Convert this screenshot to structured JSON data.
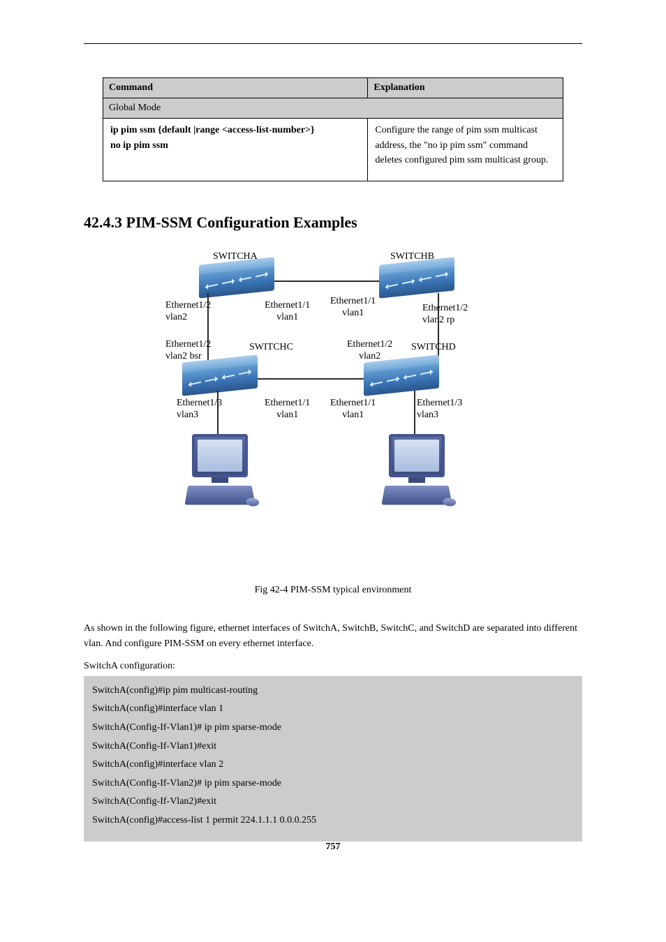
{
  "table": {
    "hdr_left": "Command",
    "hdr_right": "Explanation",
    "mode_row": "Global Mode",
    "cmd": "ip pim ssm {default |range <access-list-number>}",
    "no_cmd": "no ip pim ssm",
    "expl": "Configure the range of pim ssm multicast address, the \"no ip pim ssm\" command deletes configured pim ssm multicast group."
  },
  "section_title": "42.4.3 PIM-SSM Configuration Examples",
  "diagram": {
    "dev": {
      "a": "SWITCHA",
      "b": "SWITCHB",
      "c": "SWITCHC",
      "d": "SWITCHD"
    },
    "port": {
      "a_e12_v2": "Ethernet1/2\nvlan2",
      "a_e11_v1": "Ethernet1/1\nvlan1",
      "b_e11_v1": "Ethernet1/1\nvlan1",
      "b_e12_v2rp": "Ethernet1/2\nvlan2 rp",
      "c_e12_v2bsr": "Ethernet1/2\nvlan2 bsr",
      "c_top": "SWITCHC",
      "c_e13_v3": "Ethernet1/3\nvlan3",
      "c_e11_v1": "Ethernet1/1\nvlan1",
      "d_e12_v2": "Ethernet1/2\nvlan2",
      "d_top": "SWITCHD",
      "d_e11_v1": "Ethernet1/1\nvlan1",
      "d_e13_v3": "Ethernet1/3\nvlan3"
    }
  },
  "fig_caption": "Fig 42-4 PIM-SSM typical environment",
  "para1": "As shown in the following figure, ethernet interfaces of SwitchA, SwitchB, SwitchC, and SwitchD are separated into different vlan. And configure PIM-SSM on every ethernet interface.",
  "config_label": "SwitchA configuration",
  "code_label_colon": ":",
  "code": [
    "SwitchA(config)#ip pim multicast-routing",
    "SwitchA(config)#interface vlan 1",
    "SwitchA(Config-If-Vlan1)# ip pim sparse-mode",
    "SwitchA(Config-If-Vlan1)#exit",
    "SwitchA(config)#interface vlan 2",
    "SwitchA(Config-If-Vlan2)# ip pim sparse-mode",
    "SwitchA(Config-If-Vlan2)#exit",
    "SwitchA(config)#access-list 1 permit 224.1.1.1 0.0.0.255"
  ],
  "page_num": "757"
}
